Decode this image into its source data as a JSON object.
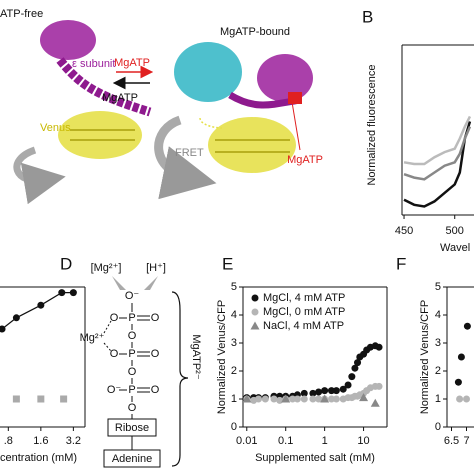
{
  "figure": {
    "panel_a": {
      "state_free": "ATP-free",
      "state_bound": "MgATP-bound",
      "epsilon": "ε subunit",
      "ligand_in": "MgATP",
      "ligand_out": "MgATP",
      "venus": "Venus",
      "fret": "FRET",
      "ligand_bound": "MgATP"
    },
    "panel_d": {
      "letter": "D",
      "mg": "[Mg²⁺]",
      "h": "[H⁺]",
      "mg_ion": "Mg²⁺",
      "molecule": "MgATP²⁻",
      "ribose": "Ribose",
      "adenine": "Adenine",
      "atoms": [
        "O⁻",
        "O",
        "P",
        "O",
        "O",
        "O",
        "P",
        "O",
        "O",
        "O⁻",
        "P",
        "O",
        "O"
      ]
    }
  },
  "chart_data": [
    {
      "type": "line",
      "label": "B",
      "ylabel": "Normalized fluorescence",
      "xlabel": "Wavel",
      "xlim": [
        448,
        519
      ],
      "ylim": [
        0,
        1
      ],
      "xticks": [
        450,
        500
      ],
      "series": [
        {
          "color": "#111111",
          "line": true,
          "x": [
            450,
            460,
            470,
            480,
            490,
            500,
            505,
            510,
            515
          ],
          "values": [
            0.09,
            0.06,
            0.05,
            0.08,
            0.13,
            0.18,
            0.25,
            0.45,
            0.55
          ]
        },
        {
          "color": "#888888",
          "line": true,
          "x": [
            450,
            460,
            470,
            480,
            490,
            500,
            505,
            510,
            515
          ],
          "values": [
            0.24,
            0.22,
            0.21,
            0.25,
            0.29,
            0.31,
            0.36,
            0.45,
            0.52
          ]
        },
        {
          "color": "#bbbbbb",
          "line": true,
          "x": [
            450,
            460,
            470,
            480,
            490,
            500,
            505,
            510,
            515
          ],
          "values": [
            0.31,
            0.3,
            0.3,
            0.34,
            0.37,
            0.39,
            0.45,
            0.52,
            0.58
          ]
        }
      ]
    },
    {
      "type": "scatter",
      "xlabel": "centration (mM)",
      "xlog": true,
      "xlim": [
        0.67,
        4.1
      ],
      "ylim": [
        0,
        5
      ],
      "xticks": [
        {
          "value": 0.8,
          "label": ".8"
        },
        1.6,
        3.2
      ],
      "series": [
        {
          "color": "#111111",
          "marker": "circle",
          "line": true,
          "x": [
            0.7,
            0.95,
            1.6,
            2.5,
            3.2
          ],
          "values": [
            3.5,
            3.9,
            4.35,
            4.8,
            4.8
          ]
        },
        {
          "color": "#aaaaaa",
          "marker": "square",
          "x": [
            0.95,
            1.6,
            2.6
          ],
          "values": [
            1,
            1,
            1
          ]
        }
      ]
    },
    {
      "type": "scatter",
      "label": "E",
      "xlabel": "Supplemented salt (mM)",
      "ylabel": "Normalized Venus/CFP",
      "xlog": true,
      "xlim": [
        0.008,
        40
      ],
      "ylim": [
        0,
        5
      ],
      "xticks": [
        0.01,
        0.1,
        1,
        10
      ],
      "yticks": [
        0,
        1,
        2,
        3,
        4,
        5
      ],
      "legend": "upper left",
      "series": [
        {
          "name": "MgCl, 4 mM ATP",
          "color": "#111111",
          "marker": "circle",
          "x": [
            0.01,
            0.015,
            0.02,
            0.03,
            0.05,
            0.07,
            0.1,
            0.15,
            0.2,
            0.3,
            0.5,
            0.7,
            1,
            1.5,
            2,
            3,
            4,
            5,
            6,
            7,
            8,
            10,
            12,
            15,
            20,
            25
          ],
          "values": [
            1.05,
            1.05,
            1.05,
            1.05,
            1.1,
            1.1,
            1.1,
            1.1,
            1.15,
            1.2,
            1.2,
            1.25,
            1.3,
            1.3,
            1.3,
            1.35,
            1.5,
            1.8,
            2.1,
            2.3,
            2.5,
            2.6,
            2.75,
            2.85,
            2.9,
            2.85
          ]
        },
        {
          "name": "MgCl, 0 mM ATP",
          "color": "#b5b5b5",
          "marker": "circle",
          "x": [
            0.01,
            0.015,
            0.02,
            0.03,
            0.05,
            0.07,
            0.1,
            0.15,
            0.2,
            0.3,
            0.5,
            0.7,
            1,
            1.5,
            2,
            3,
            4,
            5,
            6,
            7,
            8,
            10,
            12,
            15,
            20,
            25
          ],
          "values": [
            1,
            0.95,
            1,
            1,
            1,
            0.95,
            1,
            1,
            1,
            1,
            1,
            1,
            1,
            1,
            1,
            1,
            1.05,
            1.05,
            1.1,
            1.1,
            1.15,
            1.2,
            1.3,
            1.4,
            1.45,
            1.45
          ]
        },
        {
          "name": "NaCl, 4 mM ATP",
          "color": "#888888",
          "marker": "triangle",
          "x": [
            0.01,
            0.1,
            1,
            10,
            20
          ],
          "values": [
            1,
            1,
            1,
            1.05,
            0.85
          ]
        }
      ]
    },
    {
      "type": "scatter",
      "label": "F",
      "ylabel": "Normalized Venus/CFP",
      "xlim": [
        6.35,
        7.25
      ],
      "ylim": [
        0,
        5
      ],
      "xticks": [
        6.5,
        7
      ],
      "yticks": [
        0,
        1,
        2,
        3,
        4,
        5
      ],
      "series": [
        {
          "color": "#111111",
          "marker": "circle",
          "x": [
            6.73,
            6.83,
            7.03
          ],
          "values": [
            1.6,
            2.5,
            3.6
          ]
        },
        {
          "color": "#b5b5b5",
          "marker": "circle",
          "x": [
            6.77,
            7.0
          ],
          "values": [
            1,
            1
          ]
        }
      ]
    }
  ]
}
